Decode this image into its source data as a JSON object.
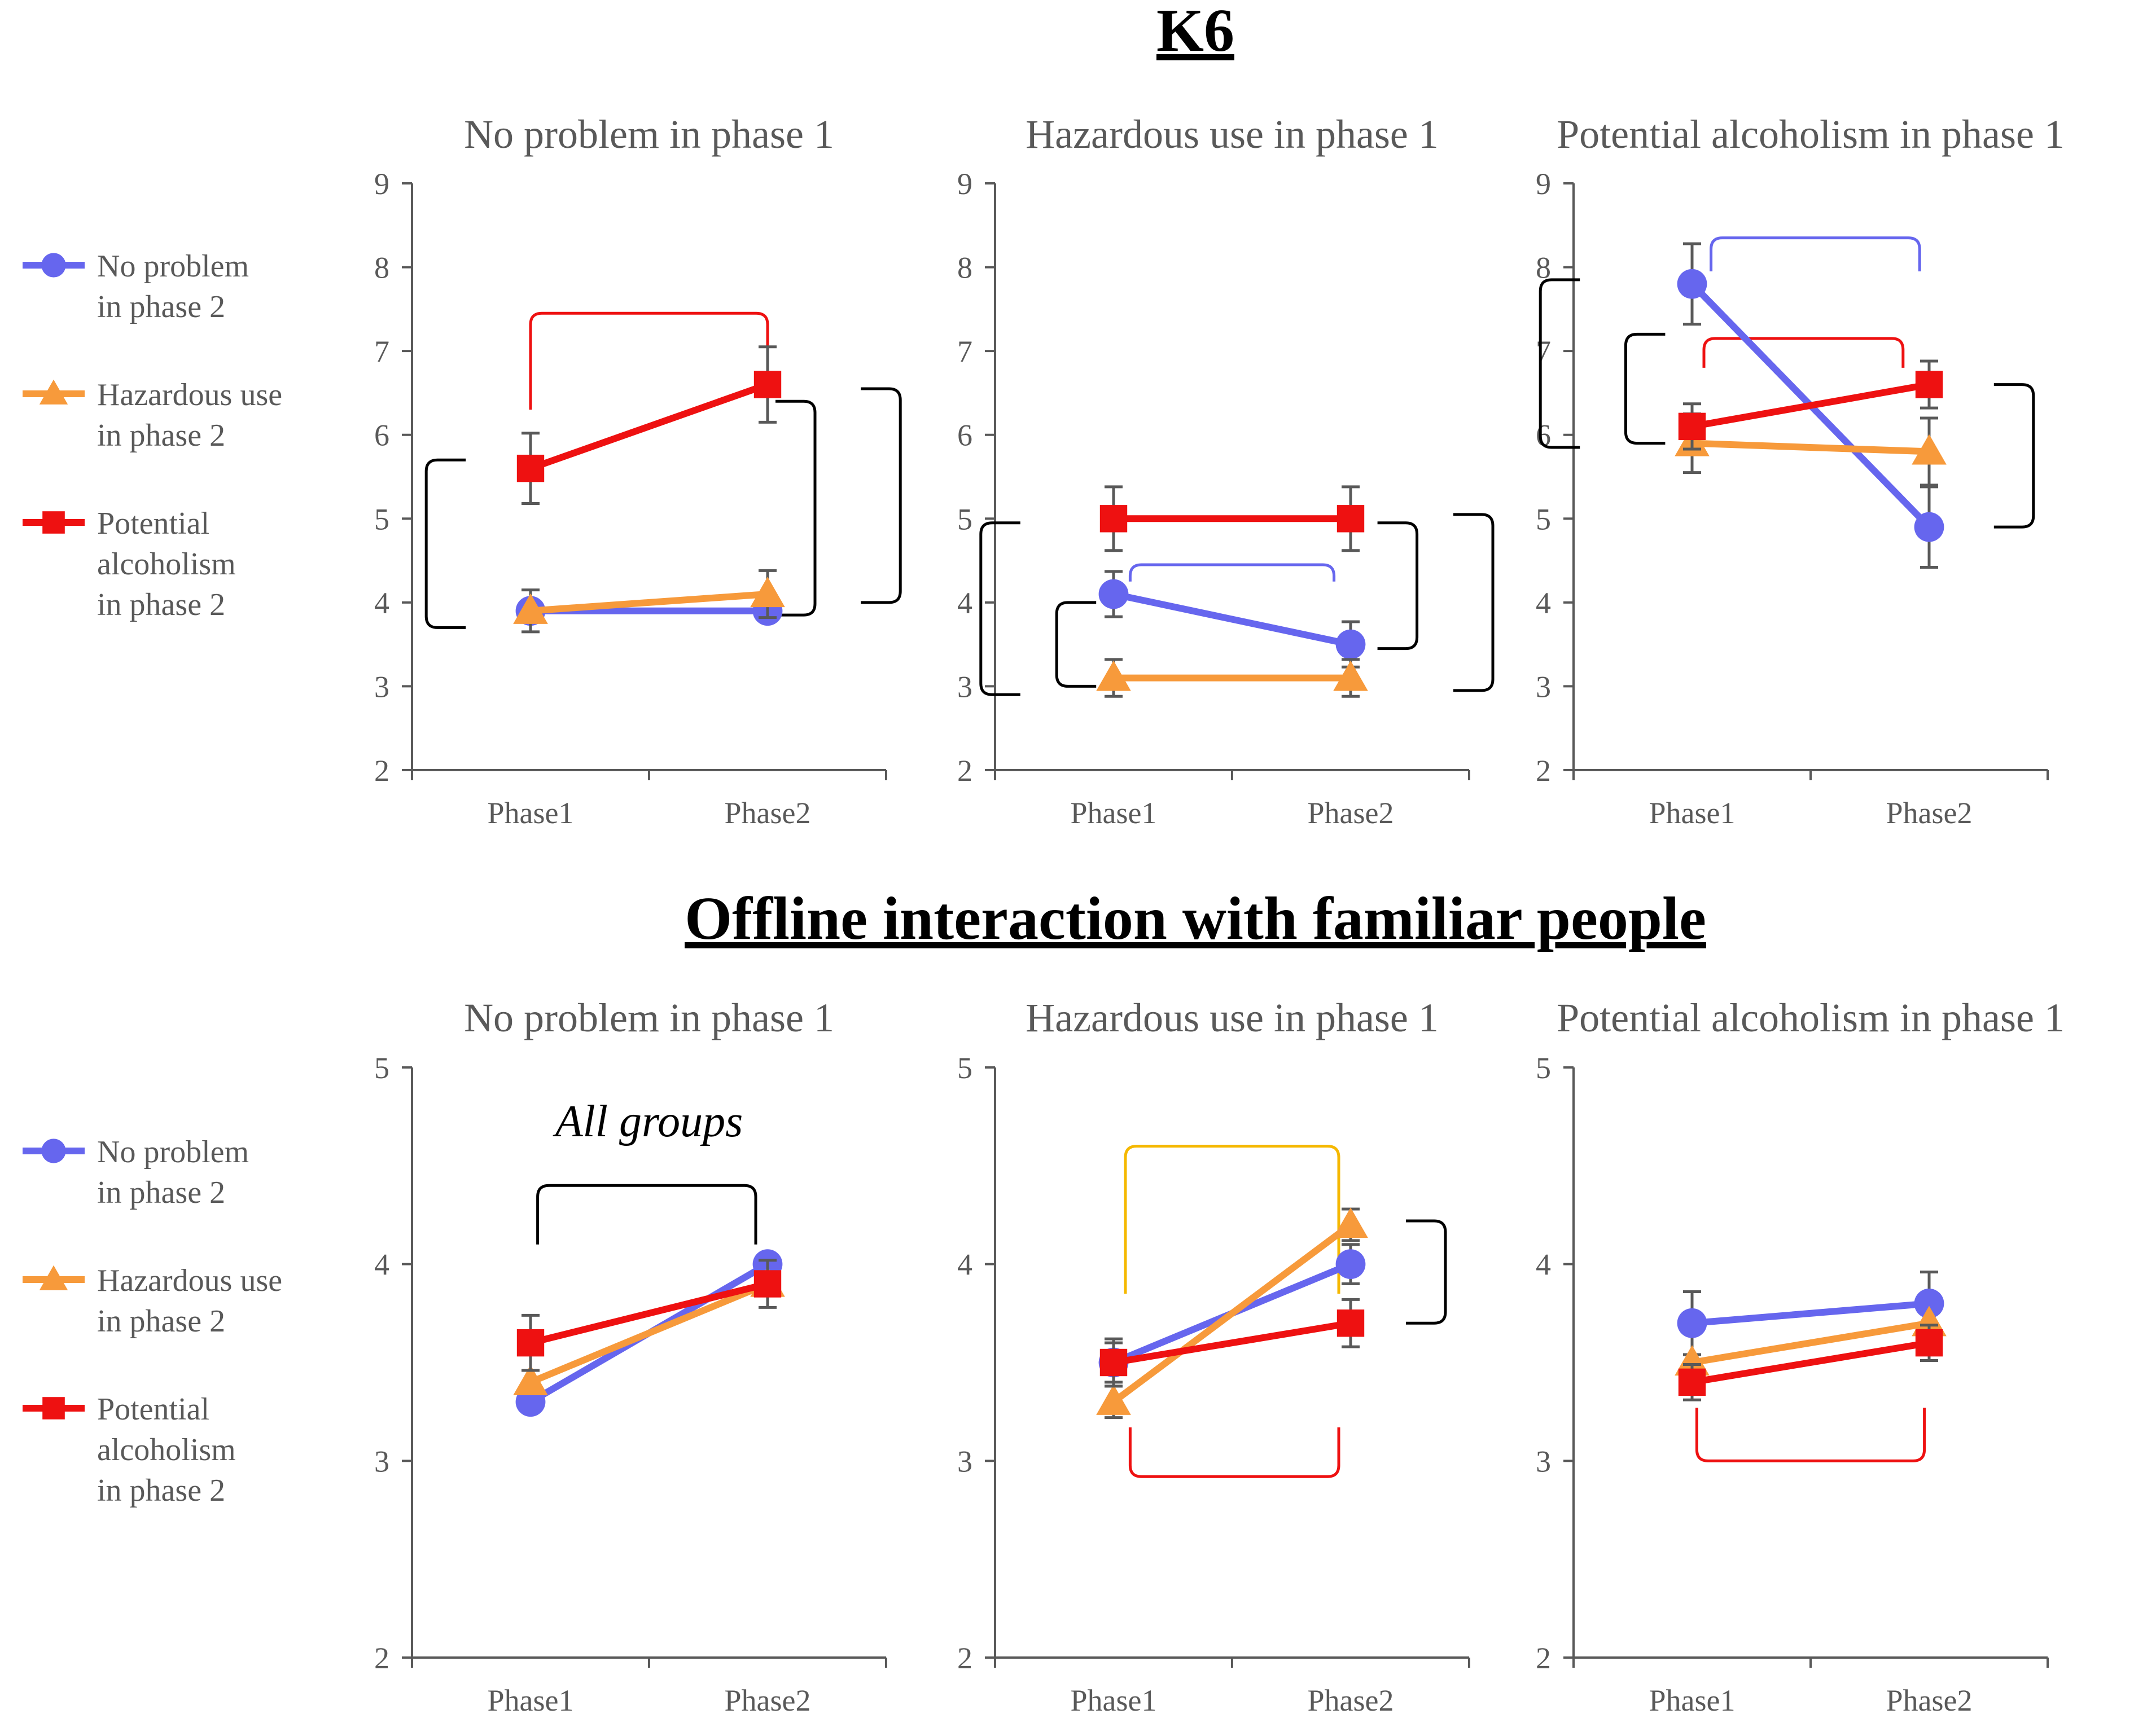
{
  "colors": {
    "no_problem": "#6666EE",
    "hazardous": "#F79A3B",
    "alcoholism": "#EE1111",
    "hazardous_bracket": "#F5B800",
    "black": "#000000",
    "axis": "#595959"
  },
  "legend": [
    {
      "key": "no_problem",
      "lines": [
        "No problem",
        "in phase 2"
      ],
      "marker": "circle"
    },
    {
      "key": "hazardous",
      "lines": [
        "Hazardous use",
        "in phase 2"
      ],
      "marker": "triangle"
    },
    {
      "key": "alcoholism",
      "lines": [
        "Potential",
        "alcoholism",
        "in phase 2"
      ],
      "marker": "square"
    }
  ],
  "chart_data": [
    {
      "section": "K6",
      "type": "line",
      "y_ticks": [
        "2",
        "3",
        "4",
        "5",
        "6",
        "7",
        "8",
        "9"
      ],
      "ylim": [
        2,
        9
      ],
      "categories": [
        "Phase1",
        "Phase2"
      ],
      "panels": [
        {
          "title": "No problem in phase 1",
          "series": [
            {
              "key": "no_problem",
              "values": [
                3.9,
                3.9
              ],
              "err": [
                0.0,
                0.0
              ]
            },
            {
              "key": "hazardous",
              "values": [
                3.9,
                4.1
              ],
              "err": [
                0.25,
                0.28
              ]
            },
            {
              "key": "alcoholism",
              "values": [
                5.6,
                6.6
              ],
              "err": [
                0.42,
                0.45
              ]
            }
          ],
          "brackets": [
            {
              "dir": "top",
              "color": "alcoholism",
              "x": [
                0,
                1
              ],
              "y": 7.45,
              "tip": 6.3
            },
            {
              "dir": "left",
              "color": "black",
              "cat": 0,
              "y": [
                3.7,
                5.7
              ],
              "depth": 0.22
            },
            {
              "dir": "right",
              "color": "black",
              "cat": 1,
              "y": [
                4.0,
                6.55
              ],
              "depth": 0.28
            },
            {
              "dir": "right",
              "color": "black",
              "cat": 1,
              "y": [
                3.85,
                6.4
              ],
              "depth": 0.1
            }
          ],
          "annotation": ""
        },
        {
          "title": "Hazardous use in phase 1",
          "series": [
            {
              "key": "no_problem",
              "values": [
                4.1,
                3.5
              ],
              "err": [
                0.27,
                0.27
              ]
            },
            {
              "key": "hazardous",
              "values": [
                3.1,
                3.1
              ],
              "err": [
                0.22,
                0.22
              ]
            },
            {
              "key": "alcoholism",
              "values": [
                5.0,
                5.0
              ],
              "err": [
                0.38,
                0.38
              ]
            }
          ],
          "brackets": [
            {
              "dir": "top",
              "color": "no_problem",
              "x": [
                0.07,
                0.93
              ],
              "y": 4.45,
              "tip": 4.25
            },
            {
              "dir": "left",
              "color": "black",
              "cat": 0,
              "y": [
                2.9,
                4.95
              ],
              "depth": 0.28
            },
            {
              "dir": "left",
              "color": "black",
              "cat": 0,
              "y": [
                3.0,
                4.0
              ],
              "depth": 0.12
            },
            {
              "dir": "right",
              "color": "black",
              "cat": 1,
              "y": [
                2.95,
                5.05
              ],
              "depth": 0.3
            },
            {
              "dir": "right",
              "color": "black",
              "cat": 1,
              "y": [
                3.45,
                4.95
              ],
              "depth": 0.14
            }
          ],
          "annotation": ""
        },
        {
          "title": "Potential alcoholism in phase 1",
          "series": [
            {
              "key": "no_problem",
              "values": [
                7.8,
                4.9
              ],
              "err": [
                0.48,
                0.48
              ]
            },
            {
              "key": "hazardous",
              "values": [
                5.9,
                5.8
              ],
              "err": [
                0.35,
                0.4
              ]
            },
            {
              "key": "alcoholism",
              "values": [
                6.1,
                6.6
              ],
              "err": [
                0.27,
                0.28
              ]
            }
          ],
          "brackets": [
            {
              "dir": "top",
              "color": "no_problem",
              "x": [
                0.08,
                0.96
              ],
              "y": 8.35,
              "tip": 7.95
            },
            {
              "dir": "top",
              "color": "alcoholism",
              "x": [
                0.05,
                0.89
              ],
              "y": 7.15,
              "tip": 6.8
            },
            {
              "dir": "left",
              "color": "black",
              "cat": 0,
              "y": [
                5.85,
                7.85
              ],
              "depth": 0.32
            },
            {
              "dir": "left",
              "color": "black",
              "cat": 0,
              "y": [
                5.9,
                7.2
              ],
              "depth": 0.14
            },
            {
              "dir": "right",
              "color": "black",
              "cat": 1,
              "y": [
                4.9,
                6.6
              ],
              "depth": 0.22
            }
          ],
          "annotation": ""
        }
      ]
    },
    {
      "section": "Offline interaction with familiar people",
      "type": "line",
      "y_ticks": [
        "2",
        "3",
        "4",
        "5"
      ],
      "ylim": [
        2,
        5
      ],
      "categories": [
        "Phase1",
        "Phase2"
      ],
      "panels": [
        {
          "title": "No problem in phase 1",
          "series": [
            {
              "key": "no_problem",
              "values": [
                3.3,
                4.0
              ],
              "err": [
                0.0,
                0.0
              ]
            },
            {
              "key": "hazardous",
              "values": [
                3.4,
                3.9
              ],
              "err": [
                0.0,
                0.0
              ]
            },
            {
              "key": "alcoholism",
              "values": [
                3.6,
                3.9
              ],
              "err": [
                0.14,
                0.12
              ]
            }
          ],
          "brackets": [
            {
              "dir": "top",
              "color": "black",
              "x": [
                0.03,
                0.95
              ],
              "y": 4.4,
              "tip": 4.1
            }
          ],
          "annotation": "All groups"
        },
        {
          "title": "Hazardous use in phase 1",
          "series": [
            {
              "key": "no_problem",
              "values": [
                3.5,
                4.0
              ],
              "err": [
                0.1,
                0.1
              ]
            },
            {
              "key": "hazardous",
              "values": [
                3.3,
                4.2
              ],
              "err": [
                0.08,
                0.08
              ]
            },
            {
              "key": "alcoholism",
              "values": [
                3.5,
                3.7
              ],
              "err": [
                0.12,
                0.12
              ]
            }
          ],
          "brackets": [
            {
              "dir": "top",
              "color": "hazardous_bracket",
              "x": [
                0.05,
                0.95
              ],
              "y": 4.6,
              "tip": 3.85
            },
            {
              "dir": "bottom",
              "color": "alcoholism",
              "x": [
                0.07,
                0.95
              ],
              "y": 2.92,
              "tip": 3.17
            },
            {
              "dir": "right",
              "color": "black",
              "cat": 1,
              "y": [
                3.7,
                4.22
              ],
              "depth": 0.2
            }
          ],
          "annotation": ""
        },
        {
          "title": "Potential alcoholism in phase 1",
          "series": [
            {
              "key": "no_problem",
              "values": [
                3.7,
                3.8
              ],
              "err": [
                0.16,
                0.16
              ]
            },
            {
              "key": "hazardous",
              "values": [
                3.5,
                3.7
              ],
              "err": [
                0.0,
                0.0
              ]
            },
            {
              "key": "alcoholism",
              "values": [
                3.4,
                3.6
              ],
              "err": [
                0.09,
                0.09
              ]
            }
          ],
          "brackets": [
            {
              "dir": "bottom",
              "color": "alcoholism",
              "x": [
                0.02,
                0.98
              ],
              "y": 3.0,
              "tip": 3.27
            }
          ],
          "annotation": ""
        }
      ]
    }
  ]
}
